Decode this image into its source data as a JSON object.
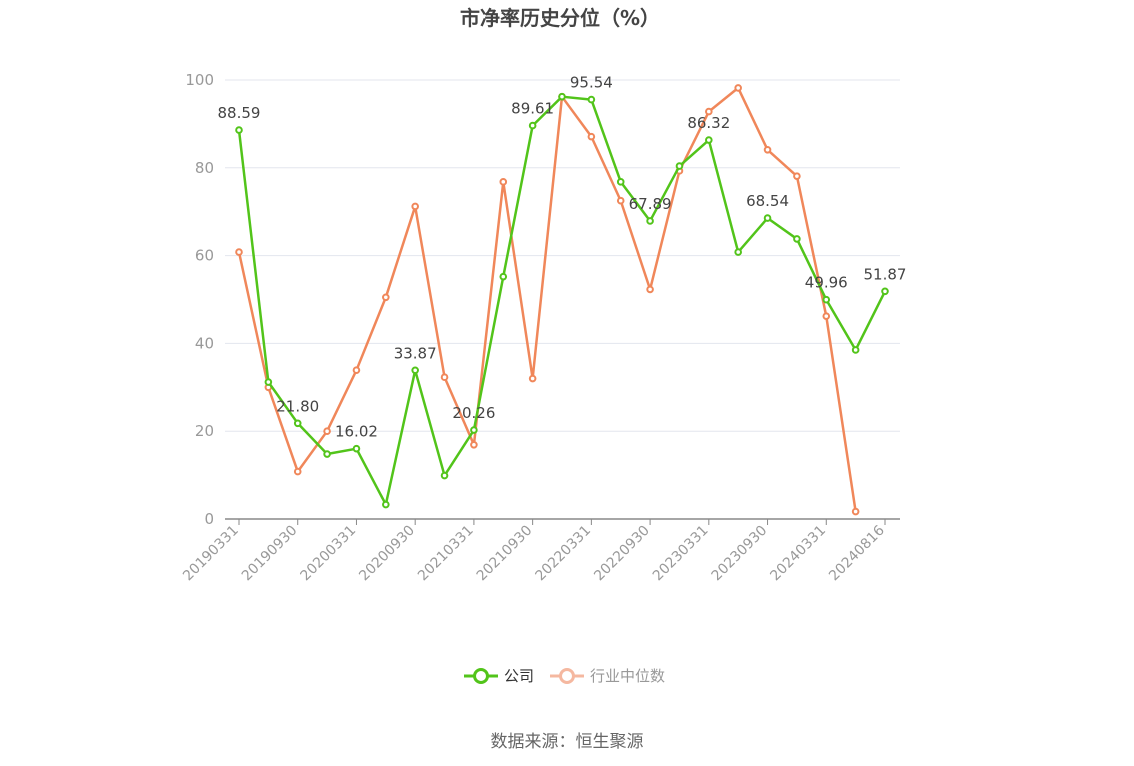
{
  "chart_data": {
    "type": "line",
    "title": "市净率历史分位（%）",
    "source": "数据来源：恒生聚源",
    "ylim": [
      0,
      100
    ],
    "y_ticks": [
      0,
      20,
      40,
      60,
      80,
      100
    ],
    "x": [
      "20190331",
      "20190630",
      "20190930",
      "20191231",
      "20200331",
      "20200630",
      "20200930",
      "20201231",
      "20210331",
      "20210630",
      "20210930",
      "20211231",
      "20220331",
      "20220630",
      "20220930",
      "20221231",
      "20230331",
      "20230630",
      "20230930",
      "20231231",
      "20240331",
      "20240630",
      "20240816"
    ],
    "x_tick_labels": [
      "20190331",
      "20190930",
      "20200331",
      "20200930",
      "20210331",
      "20210930",
      "20220331",
      "20220930",
      "20230331",
      "20230930",
      "20240331",
      "20240816"
    ],
    "x_tick_indices": [
      0,
      2,
      4,
      6,
      8,
      10,
      12,
      14,
      16,
      18,
      20,
      22
    ],
    "grid": true,
    "legend_position": "bottom",
    "series": [
      {
        "name": "公司",
        "color": "#52c41a",
        "values": [
          88.59,
          31.2,
          21.8,
          14.8,
          16.02,
          3.3,
          33.87,
          9.9,
          20.26,
          55.2,
          89.61,
          96.2,
          95.54,
          76.8,
          67.89,
          80.4,
          86.32,
          60.8,
          68.54,
          63.8,
          49.96,
          38.5,
          51.87
        ],
        "labels": {
          "0": "88.59",
          "2": "21.80",
          "4": "16.02",
          "6": "33.87",
          "8": "20.26",
          "10": "89.61",
          "12": "95.54",
          "14": "67.89",
          "16": "86.32",
          "18": "68.54",
          "20": "49.96",
          "22": "51.87"
        }
      },
      {
        "name": "行业中位数",
        "color": "#f0875a",
        "legend_color": "#f5b8a0",
        "values": [
          60.8,
          30.0,
          10.8,
          20.0,
          33.9,
          50.5,
          71.2,
          32.3,
          16.9,
          76.8,
          32.0,
          96.2,
          87.1,
          72.5,
          52.3,
          79.3,
          92.8,
          98.2,
          84.1,
          78.1,
          46.2,
          1.7,
          null
        ]
      }
    ]
  }
}
